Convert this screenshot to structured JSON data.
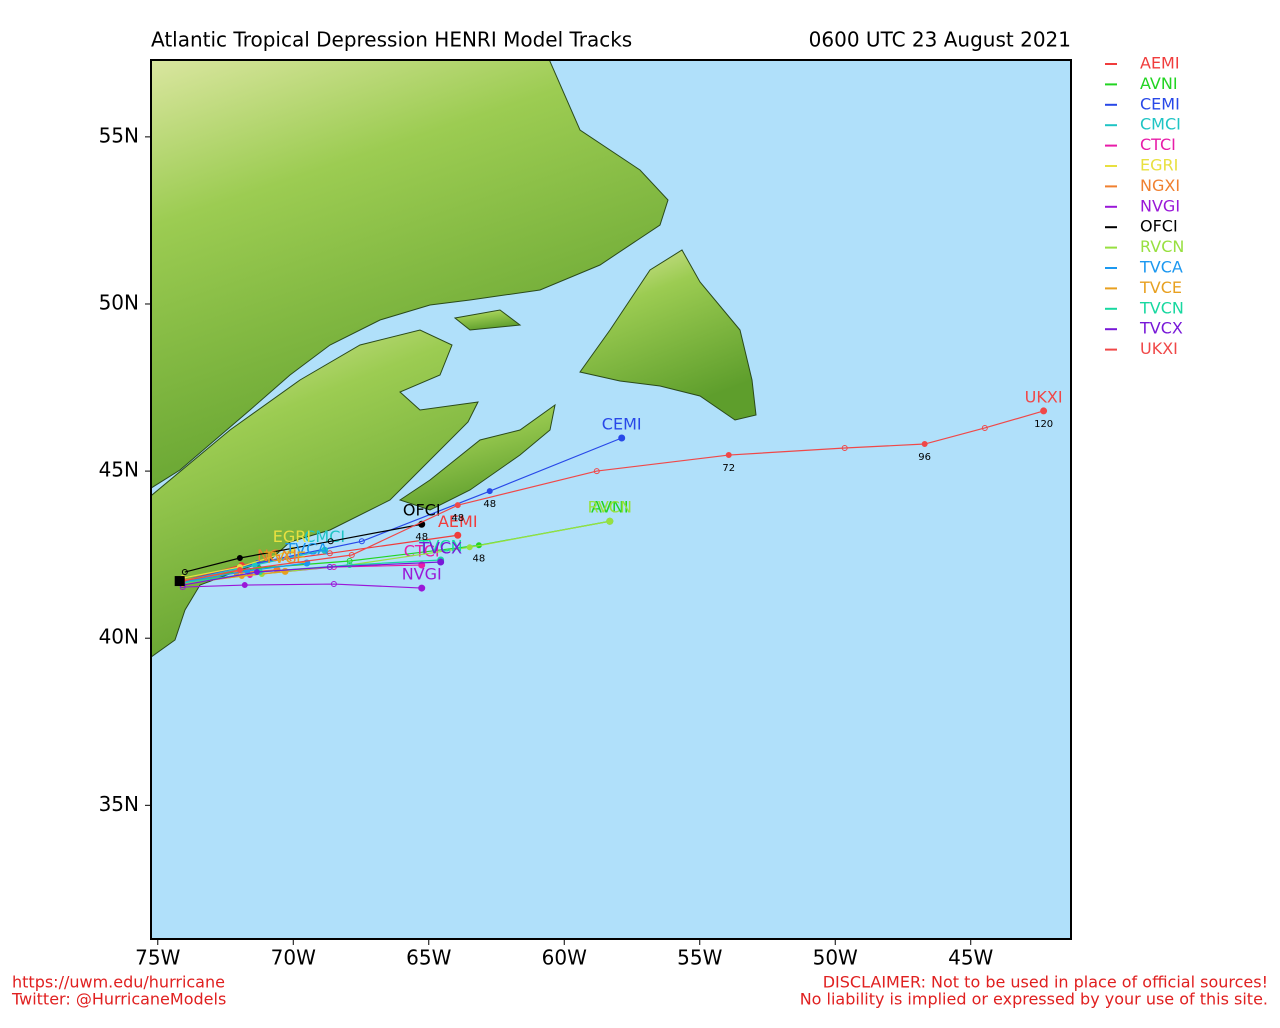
{
  "header": {
    "title": "Atlantic Tropical Depression HENRI Model Tracks",
    "datetime": "0600 UTC 23 August 2021"
  },
  "map": {
    "lonlim": [
      -75.25,
      -41.3
    ],
    "latlim": [
      31.0,
      57.3
    ],
    "xticks": [
      {
        "value": -75,
        "label": "75W"
      },
      {
        "value": -70,
        "label": "70W"
      },
      {
        "value": -65,
        "label": "65W"
      },
      {
        "value": -60,
        "label": "60W"
      },
      {
        "value": -55,
        "label": "55W"
      },
      {
        "value": -50,
        "label": "50W"
      },
      {
        "value": -45,
        "label": "45W"
      }
    ],
    "yticks": [
      {
        "value": 55,
        "label": "55N"
      },
      {
        "value": 50,
        "label": "50N"
      },
      {
        "value": 45,
        "label": "45N"
      },
      {
        "value": 40,
        "label": "40N"
      },
      {
        "value": 35,
        "label": "35N"
      }
    ]
  },
  "tracks": [
    {
      "name": "AEMI",
      "color": "#f03c3c",
      "points": [
        {
          "lon": -74.08,
          "lat": 41.71
        },
        {
          "lon": -71.9,
          "lat": 42.19
        },
        {
          "lon": -68.65,
          "lat": 42.54
        },
        {
          "lon": -63.93,
          "lat": 43.08
        }
      ]
    },
    {
      "name": "AVNI",
      "color": "#22d422",
      "points": [
        {
          "lon": -74.08,
          "lat": 41.71
        },
        {
          "lon": -71.27,
          "lat": 42.1
        },
        {
          "lon": -67.92,
          "lat": 42.31
        },
        {
          "lon": -63.15,
          "lat": 42.78,
          "hour": 48
        },
        {
          "lon": -58.32,
          "lat": 43.5
        }
      ]
    },
    {
      "name": "CEMI",
      "color": "#2848e8",
      "points": [
        {
          "lon": -74.08,
          "lat": 41.71
        },
        {
          "lon": -71.31,
          "lat": 42.25
        },
        {
          "lon": -67.47,
          "lat": 42.9
        },
        {
          "lon": -62.75,
          "lat": 44.4,
          "hour": 48
        },
        {
          "lon": -57.88,
          "lat": 45.99
        }
      ]
    },
    {
      "name": "CMCI",
      "color": "#1fc4c4",
      "points": [
        {
          "lon": -74.08,
          "lat": 41.71
        },
        {
          "lon": -71.42,
          "lat": 42.19
        },
        {
          "lon": -68.84,
          "lat": 42.63
        }
      ]
    },
    {
      "name": "CTCI",
      "color": "#e81ca8",
      "points": [
        {
          "lon": -74.08,
          "lat": 41.65
        },
        {
          "lon": -71.6,
          "lat": 41.89
        },
        {
          "lon": -68.5,
          "lat": 42.13
        },
        {
          "lon": -65.26,
          "lat": 42.19
        }
      ]
    },
    {
      "name": "EGRI",
      "color": "#e8e040",
      "points": [
        {
          "lon": -74.08,
          "lat": 41.8
        },
        {
          "lon": -71.97,
          "lat": 42.13
        },
        {
          "lon": -70.05,
          "lat": 42.63
        }
      ]
    },
    {
      "name": "NGXI",
      "color": "#f08030",
      "points": [
        {
          "lon": -74.08,
          "lat": 41.74
        },
        {
          "lon": -72.1,
          "lat": 41.95
        },
        {
          "lon": -70.6,
          "lat": 42.05
        }
      ]
    },
    {
      "name": "NVGI",
      "color": "#9a18d8",
      "points": [
        {
          "lon": -74.08,
          "lat": 41.53
        },
        {
          "lon": -71.79,
          "lat": 41.59
        },
        {
          "lon": -68.5,
          "lat": 41.62
        },
        {
          "lon": -65.26,
          "lat": 41.5
        }
      ]
    },
    {
      "name": "OFCI",
      "color": "#000000",
      "points": [
        {
          "lon": -74.0,
          "lat": 41.98
        },
        {
          "lon": -71.97,
          "lat": 42.4
        },
        {
          "lon": -68.62,
          "lat": 42.9
        },
        {
          "lon": -65.26,
          "lat": 43.41,
          "hour": 48
        }
      ]
    },
    {
      "name": "RVCN",
      "color": "#98e040",
      "points": [
        {
          "lon": -74.08,
          "lat": 41.65
        },
        {
          "lon": -71.16,
          "lat": 41.92
        },
        {
          "lon": -67.92,
          "lat": 42.19
        },
        {
          "lon": -63.49,
          "lat": 42.72
        },
        {
          "lon": -58.32,
          "lat": 43.5
        }
      ]
    },
    {
      "name": "TVCA",
      "color": "#1c98f0",
      "points": [
        {
          "lon": -74.08,
          "lat": 41.68
        },
        {
          "lon": -71.7,
          "lat": 42.01
        },
        {
          "lon": -69.5,
          "lat": 42.25
        }
      ]
    },
    {
      "name": "TVCE",
      "color": "#e8a020",
      "points": [
        {
          "lon": -74.08,
          "lat": 41.62
        },
        {
          "lon": -71.9,
          "lat": 41.86
        },
        {
          "lon": -70.3,
          "lat": 42.0
        }
      ]
    },
    {
      "name": "TVCN",
      "color": "#18d8a0",
      "points": [
        {
          "lon": -74.08,
          "lat": 41.65
        },
        {
          "lon": -71.23,
          "lat": 41.98
        },
        {
          "lon": -67.92,
          "lat": 42.19
        },
        {
          "lon": -64.56,
          "lat": 42.34
        }
      ]
    },
    {
      "name": "TVCX",
      "color": "#7818d8",
      "points": [
        {
          "lon": -74.08,
          "lat": 41.59
        },
        {
          "lon": -71.34,
          "lat": 41.98
        },
        {
          "lon": -68.65,
          "lat": 42.13
        },
        {
          "lon": -64.56,
          "lat": 42.28
        }
      ]
    },
    {
      "name": "UKXI",
      "color": "#f04848",
      "points": [
        {
          "lon": -74.08,
          "lat": 41.71
        },
        {
          "lon": -71.97,
          "lat": 42.04
        },
        {
          "lon": -67.84,
          "lat": 42.49
        },
        {
          "lon": -63.93,
          "lat": 43.98,
          "hour": 48
        },
        {
          "lon": -58.8,
          "lat": 45.0
        },
        {
          "lon": -53.93,
          "lat": 45.48,
          "hour": 72
        },
        {
          "lon": -49.65,
          "lat": 45.69
        },
        {
          "lon": -46.7,
          "lat": 45.81,
          "hour": 96
        },
        {
          "lon": -44.48,
          "lat": 46.29
        },
        {
          "lon": -42.31,
          "lat": 46.8,
          "hour": 120
        }
      ]
    }
  ],
  "footer": {
    "url": "https://uwm.edu/hurricane",
    "twitter": "Twitter: @HurricaneModels",
    "disclaimer": "DISCLAIMER: Not to be used in place of official sources!",
    "liability": "No liability is implied or expressed by your use of this site."
  }
}
